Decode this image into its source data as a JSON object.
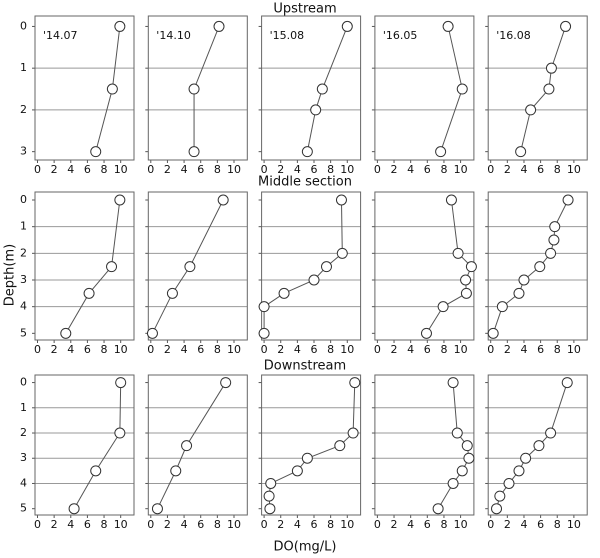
{
  "sections": [
    "Upstream",
    "Middle section",
    "Downstream"
  ],
  "ylabel": "Depth(m)",
  "xlabel": "DO(mg/L)",
  "chart_data": [
    {
      "type": "line",
      "title": "'14.07",
      "x": [
        9.9,
        9,
        7
      ],
      "values": [
        0,
        1.5,
        3
      ],
      "xlim": [
        -0.3,
        11.6
      ],
      "xticks": [
        0,
        2,
        4,
        6,
        8,
        10
      ],
      "ylim": [
        3.2,
        -0.25
      ],
      "yticks": [
        0,
        1,
        2,
        3
      ]
    },
    {
      "type": "line",
      "title": "'14.10",
      "x": [
        8.2,
        5.2,
        5.2
      ],
      "values": [
        0,
        1.5,
        3
      ],
      "xlim": [
        -0.3,
        11.6
      ],
      "xticks": [
        0,
        2,
        4,
        6,
        8,
        10
      ],
      "ylim": [
        3.2,
        -0.25
      ],
      "yticks": [
        0,
        1,
        2,
        3
      ]
    },
    {
      "type": "line",
      "title": "'15.08",
      "x": [
        10,
        7,
        6.2,
        5.2
      ],
      "values": [
        0,
        1.5,
        2,
        3
      ],
      "xlim": [
        -0.3,
        11.6
      ],
      "xticks": [
        0,
        2,
        4,
        6,
        8,
        10
      ],
      "ylim": [
        3.2,
        -0.25
      ],
      "yticks": [
        0,
        1,
        2,
        3
      ]
    },
    {
      "type": "line",
      "title": "'16.05",
      "x": [
        8.5,
        10.2,
        7.6
      ],
      "values": [
        0,
        1.5,
        3
      ],
      "xlim": [
        -0.3,
        11.6
      ],
      "xticks": [
        0,
        2,
        4,
        6,
        8,
        10
      ],
      "ylim": [
        3.2,
        -0.25
      ],
      "yticks": [
        0,
        1,
        2,
        3
      ]
    },
    {
      "type": "line",
      "title": "'16.08",
      "x": [
        9,
        7.3,
        7,
        4.8,
        3.6
      ],
      "values": [
        0,
        1,
        1.5,
        2,
        3
      ],
      "xlim": [
        -0.3,
        11.6
      ],
      "xticks": [
        0,
        2,
        4,
        6,
        8,
        10
      ],
      "ylim": [
        3.2,
        -0.25
      ],
      "yticks": [
        0,
        1,
        2,
        3
      ]
    },
    {
      "type": "line",
      "x": [
        9.9,
        8.9,
        6.2,
        3.4
      ],
      "values": [
        0,
        2.5,
        3.5,
        5
      ],
      "xlim": [
        -0.3,
        11.6
      ],
      "xticks": [
        0,
        2,
        4,
        6,
        8,
        10
      ],
      "ylim": [
        5.25,
        -0.3
      ],
      "yticks": [
        0,
        1,
        2,
        3,
        4,
        5
      ]
    },
    {
      "type": "line",
      "x": [
        8.7,
        4.7,
        2.6,
        0.2
      ],
      "values": [
        0,
        2.5,
        3.5,
        5
      ],
      "xlim": [
        -0.3,
        11.6
      ],
      "xticks": [
        0,
        2,
        4,
        6,
        8,
        10
      ],
      "ylim": [
        5.25,
        -0.3
      ],
      "yticks": [
        0,
        1,
        2,
        3,
        4,
        5
      ]
    },
    {
      "type": "line",
      "x": [
        9.3,
        9.4,
        7.5,
        6,
        2.4,
        0,
        0
      ],
      "values": [
        0,
        2,
        2.5,
        3,
        3.5,
        4,
        5
      ],
      "xlim": [
        -0.3,
        11.6
      ],
      "xticks": [
        0,
        2,
        4,
        6,
        8,
        10
      ],
      "ylim": [
        5.25,
        -0.3
      ],
      "yticks": [
        0,
        1,
        2,
        3,
        4,
        5
      ]
    },
    {
      "type": "line",
      "x": [
        8.9,
        9.7,
        11.3,
        10.6,
        10.7,
        7.9,
        5.9
      ],
      "values": [
        0,
        2,
        2.5,
        3,
        3.5,
        4,
        5
      ],
      "xlim": [
        -0.3,
        11.6
      ],
      "xticks": [
        0,
        2,
        4,
        6,
        8,
        10
      ],
      "ylim": [
        5.25,
        -0.3
      ],
      "yticks": [
        0,
        1,
        2,
        3,
        4,
        5
      ]
    },
    {
      "type": "line",
      "x": [
        9.3,
        7.7,
        7.6,
        7.2,
        5.9,
        4,
        3.4,
        1.4,
        0.3
      ],
      "values": [
        0,
        1,
        1.5,
        2,
        2.5,
        3,
        3.5,
        4,
        5
      ],
      "xlim": [
        -0.3,
        11.6
      ],
      "xticks": [
        0,
        2,
        4,
        6,
        8,
        10
      ],
      "ylim": [
        5.25,
        -0.3
      ],
      "yticks": [
        0,
        1,
        2,
        3,
        4,
        5
      ]
    },
    {
      "type": "line",
      "x": [
        10,
        9.9,
        7,
        4.4
      ],
      "values": [
        0,
        2,
        3.5,
        5
      ],
      "xlim": [
        -0.3,
        11.6
      ],
      "xticks": [
        0,
        2,
        4,
        6,
        8,
        10
      ],
      "ylim": [
        5.25,
        -0.3
      ],
      "yticks": [
        0,
        1,
        2,
        3,
        4,
        5
      ]
    },
    {
      "type": "line",
      "x": [
        9,
        4.3,
        3,
        0.8
      ],
      "values": [
        0,
        2.5,
        3.5,
        5
      ],
      "xlim": [
        -0.3,
        11.6
      ],
      "xticks": [
        0,
        2,
        4,
        6,
        8,
        10
      ],
      "ylim": [
        5.25,
        -0.3
      ],
      "yticks": [
        0,
        1,
        2,
        3,
        4,
        5
      ]
    },
    {
      "type": "line",
      "x": [
        10.9,
        10.7,
        9.1,
        5.2,
        4,
        0.8,
        0.6,
        0.7
      ],
      "values": [
        0,
        2,
        2.5,
        3,
        3.5,
        4,
        4.5,
        5
      ],
      "xlim": [
        -0.3,
        11.6
      ],
      "xticks": [
        0,
        2,
        4,
        6,
        8,
        10
      ],
      "ylim": [
        5.25,
        -0.3
      ],
      "yticks": [
        0,
        1,
        2,
        3,
        4,
        5
      ]
    },
    {
      "type": "line",
      "x": [
        9.1,
        9.6,
        10.8,
        11,
        10.2,
        9.1,
        7.3
      ],
      "values": [
        0,
        2,
        2.5,
        3,
        3.5,
        4,
        5
      ],
      "xlim": [
        -0.3,
        11.6
      ],
      "xticks": [
        0,
        2,
        4,
        6,
        8,
        10
      ],
      "ylim": [
        5.25,
        -0.3
      ],
      "yticks": [
        0,
        1,
        2,
        3,
        4,
        5
      ]
    },
    {
      "type": "line",
      "x": [
        9.2,
        7.2,
        5.8,
        4.2,
        3.4,
        2.2,
        1.1,
        0.7
      ],
      "values": [
        0,
        2,
        2.5,
        3,
        3.5,
        4,
        4.5,
        5
      ],
      "xlim": [
        -0.3,
        11.6
      ],
      "xticks": [
        0,
        2,
        4,
        6,
        8,
        10
      ],
      "ylim": [
        5.25,
        -0.3
      ],
      "yticks": [
        0,
        1,
        2,
        3,
        4,
        5
      ]
    }
  ]
}
